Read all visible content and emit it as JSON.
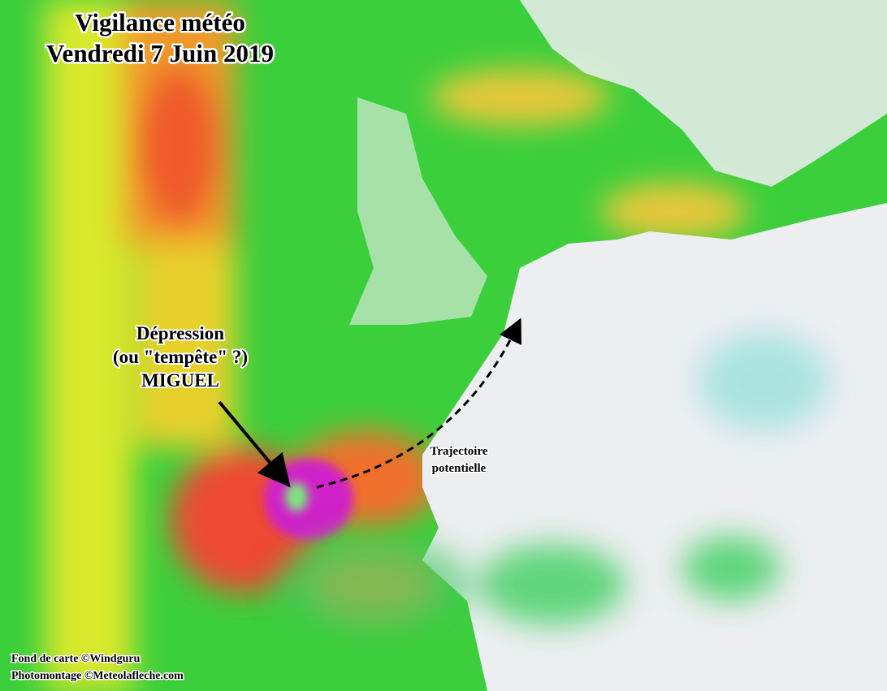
{
  "header": {
    "title": "Vigilance météo",
    "date": "Vendredi 7 Juin 2019"
  },
  "annotations": {
    "storm": [
      "Dépression",
      "(ou \"tempête\" ?)",
      "MIGUEL"
    ],
    "trajectory": [
      "Trajectoire",
      "potentielle"
    ]
  },
  "credits": [
    "Fond de carte ©Windguru",
    "Photomontage ©Meteolafleche.com"
  ]
}
